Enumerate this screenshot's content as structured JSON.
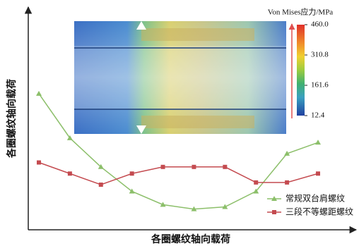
{
  "chart_data": {
    "type": "line",
    "x_label": "各圈螺纹轴向载荷",
    "y_label": "各圈螺纹轴向载荷",
    "categories": [
      null,
      null,
      null,
      null,
      null,
      null,
      null,
      null,
      null,
      null
    ],
    "ylim": [
      0,
      100
    ],
    "series": [
      {
        "name": "常规双台肩螺纹",
        "color": "#8cbf6a",
        "marker": "triangle",
        "values": [
          61,
          41,
          28,
          17,
          11,
          9,
          10,
          17,
          34,
          39
        ]
      },
      {
        "name": "三段不等螺距螺纹",
        "color": "#c44b50",
        "marker": "square",
        "values": [
          30,
          25,
          20,
          25,
          28,
          28,
          28,
          21,
          21,
          25
        ]
      }
    ],
    "legend": "lower right",
    "colorbar": {
      "title": "Von Mises应力/MPa",
      "lim": [
        12.4,
        460
      ],
      "ticks": [
        {
          "value": 460,
          "label": "460.0"
        },
        310.8,
        161.6,
        12.4
      ]
    }
  }
}
